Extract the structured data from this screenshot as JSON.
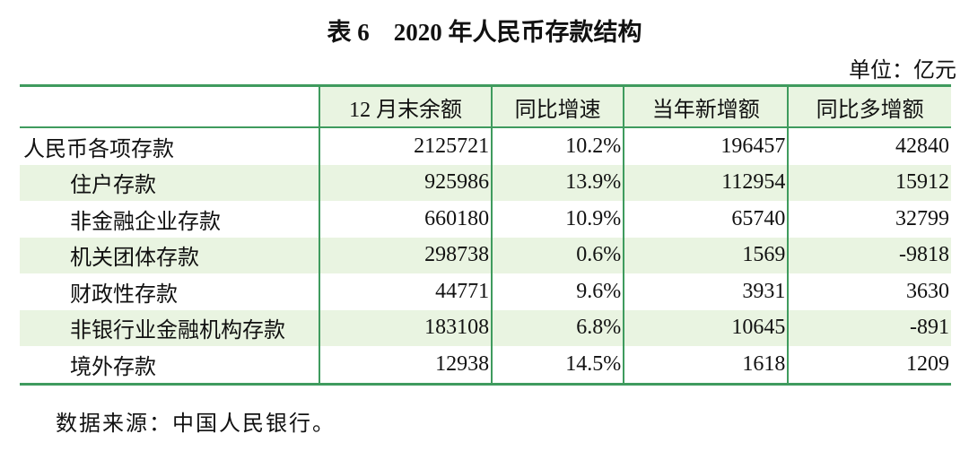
{
  "title": "表 6　2020 年人民币存款结构",
  "unit": "单位：亿元",
  "table": {
    "header": [
      "",
      "12 月末余额",
      "同比增速",
      "当年新增额",
      "同比多增额"
    ],
    "rows": [
      [
        "人民币各项存款",
        "2125721",
        "10.2%",
        "196457",
        "42840"
      ],
      [
        "住户存款",
        "925986",
        "13.9%",
        "112954",
        "15912"
      ],
      [
        "非金融企业存款",
        "660180",
        "10.9%",
        "65740",
        "32799"
      ],
      [
        "机关团体存款",
        "298738",
        "0.6%",
        "1569",
        "-9818"
      ],
      [
        "财政性存款",
        "44771",
        "9.6%",
        "3931",
        "3630"
      ],
      [
        "非银行业金融机构存款",
        "183108",
        "6.8%",
        "10645",
        "-891"
      ],
      [
        "境外存款",
        "12938",
        "14.5%",
        "1618",
        "1209"
      ]
    ]
  },
  "source": "数据来源：中国人民银行。"
}
